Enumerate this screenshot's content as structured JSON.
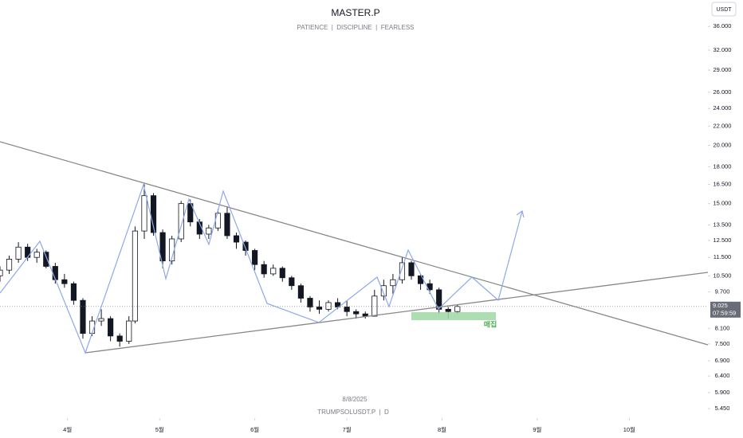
{
  "chart_data": {
    "type": "candlestick",
    "title": "MASTER.P",
    "subtitle": "PATIENCE  |  DISCIPLINE  |  FEARLESS",
    "watermark_date": "8/8/2025",
    "symbol": "TRUMPSOLUSDT.P  |  D",
    "currency": "USDT",
    "annotation": "매집",
    "last_price": 9.025,
    "countdown": "07:59:59",
    "log_scale": true,
    "up_color": "#ffffff",
    "down_color": "#131722",
    "x": [
      -22,
      -19,
      -16,
      -13,
      -10,
      -7,
      -4,
      -1,
      2,
      5,
      8,
      11,
      14,
      17,
      20,
      22,
      25,
      28,
      31,
      34,
      37,
      40,
      43,
      46,
      49,
      52,
      55,
      58,
      61,
      64,
      67,
      70,
      73,
      76,
      79,
      82,
      85,
      88,
      91,
      94,
      97,
      100,
      103,
      106,
      109,
      112,
      115,
      118,
      121,
      124,
      127
    ],
    "open": [
      10.5,
      10.8,
      11.4,
      12.1,
      11.5,
      11.8,
      11.0,
      10.3,
      10.1,
      9.3,
      7.9,
      8.4,
      8.5,
      7.8,
      7.6,
      8.4,
      13.1,
      15.6,
      13.0,
      11.3,
      12.6,
      15.0,
      13.7,
      12.9,
      13.3,
      14.3,
      12.8,
      12.4,
      11.9,
      11.1,
      10.6,
      10.9,
      10.4,
      10.0,
      9.4,
      9.0,
      8.9,
      9.2,
      9.0,
      8.8,
      8.7,
      8.6,
      9.5,
      10.0,
      10.3,
      11.2,
      10.5,
      10.1,
      9.8,
      8.9,
      8.8
    ],
    "high": [
      11.0,
      11.6,
      12.4,
      12.3,
      12.0,
      11.9,
      11.2,
      10.6,
      10.2,
      9.4,
      8.6,
      8.9,
      8.6,
      7.9,
      8.6,
      13.4,
      16.5,
      15.8,
      13.2,
      12.8,
      15.2,
      15.3,
      13.9,
      13.5,
      14.6,
      14.8,
      13.0,
      12.5,
      12.0,
      11.3,
      11.1,
      11.0,
      10.5,
      10.1,
      9.5,
      9.3,
      9.3,
      9.4,
      9.3,
      8.9,
      8.8,
      9.8,
      10.3,
      10.6,
      11.5,
      11.3,
      10.6,
      10.3,
      9.9,
      9.0,
      9.1
    ],
    "low": [
      10.2,
      10.6,
      11.2,
      11.3,
      11.2,
      10.9,
      10.1,
      9.9,
      9.1,
      7.7,
      7.8,
      8.2,
      7.6,
      7.4,
      7.5,
      8.3,
      12.6,
      12.8,
      10.9,
      11.1,
      12.4,
      13.4,
      12.6,
      12.6,
      13.1,
      12.6,
      12.0,
      11.6,
      10.8,
      10.4,
      10.5,
      10.2,
      9.8,
      9.2,
      8.8,
      8.7,
      8.8,
      8.9,
      8.6,
      8.5,
      8.5,
      8.6,
      9.3,
      9.6,
      10.1,
      10.3,
      9.8,
      9.6,
      8.7,
      8.5,
      8.7
    ],
    "close": [
      10.8,
      11.4,
      12.1,
      11.5,
      11.8,
      11.0,
      10.3,
      10.1,
      9.3,
      7.9,
      8.4,
      8.5,
      7.8,
      7.6,
      8.4,
      13.1,
      15.6,
      13.0,
      11.3,
      12.6,
      15.0,
      13.7,
      12.9,
      13.3,
      14.3,
      12.8,
      12.4,
      11.9,
      11.1,
      10.6,
      10.9,
      10.4,
      10.0,
      9.4,
      9.0,
      8.9,
      9.2,
      9.0,
      8.8,
      8.7,
      8.6,
      9.5,
      10.0,
      10.3,
      11.2,
      10.5,
      10.1,
      9.8,
      8.9,
      8.8,
      9.025
    ],
    "xlim": [
      -22,
      208.6
    ],
    "xticks": [
      {
        "value": 0,
        "label": "4월"
      },
      {
        "value": 30,
        "label": "5월"
      },
      {
        "value": 61,
        "label": "6월"
      },
      {
        "value": 91,
        "label": "7월"
      },
      {
        "value": 122,
        "label": "8월"
      },
      {
        "value": 153,
        "label": "9월"
      },
      {
        "value": 183,
        "label": "10월"
      }
    ],
    "ylim": [
      5.2,
      41
    ],
    "yticks": [
      {
        "value": 36,
        "label": "36.000"
      },
      {
        "value": 32,
        "label": "32.000"
      },
      {
        "value": 29,
        "label": "29.000"
      },
      {
        "value": 26,
        "label": "26.000"
      },
      {
        "value": 24,
        "label": "24.000"
      },
      {
        "value": 22,
        "label": "22.000"
      },
      {
        "value": 20,
        "label": "20.000"
      },
      {
        "value": 18,
        "label": "18.000"
      },
      {
        "value": 16.5,
        "label": "16.500"
      },
      {
        "value": 15,
        "label": "15.000"
      },
      {
        "value": 13.5,
        "label": "13.500"
      },
      {
        "value": 12.5,
        "label": "12.500"
      },
      {
        "value": 11.5,
        "label": "11.500"
      },
      {
        "value": 10.5,
        "label": "10.500"
      },
      {
        "value": 9.7,
        "label": "9.700"
      },
      {
        "value": 8.1,
        "label": "8.100"
      },
      {
        "value": 7.5,
        "label": "7.500"
      },
      {
        "value": 6.9,
        "label": "6.900"
      },
      {
        "value": 6.4,
        "label": "6.400"
      },
      {
        "value": 5.9,
        "label": "5.900"
      },
      {
        "value": 5.45,
        "label": "5.450"
      }
    ]
  }
}
